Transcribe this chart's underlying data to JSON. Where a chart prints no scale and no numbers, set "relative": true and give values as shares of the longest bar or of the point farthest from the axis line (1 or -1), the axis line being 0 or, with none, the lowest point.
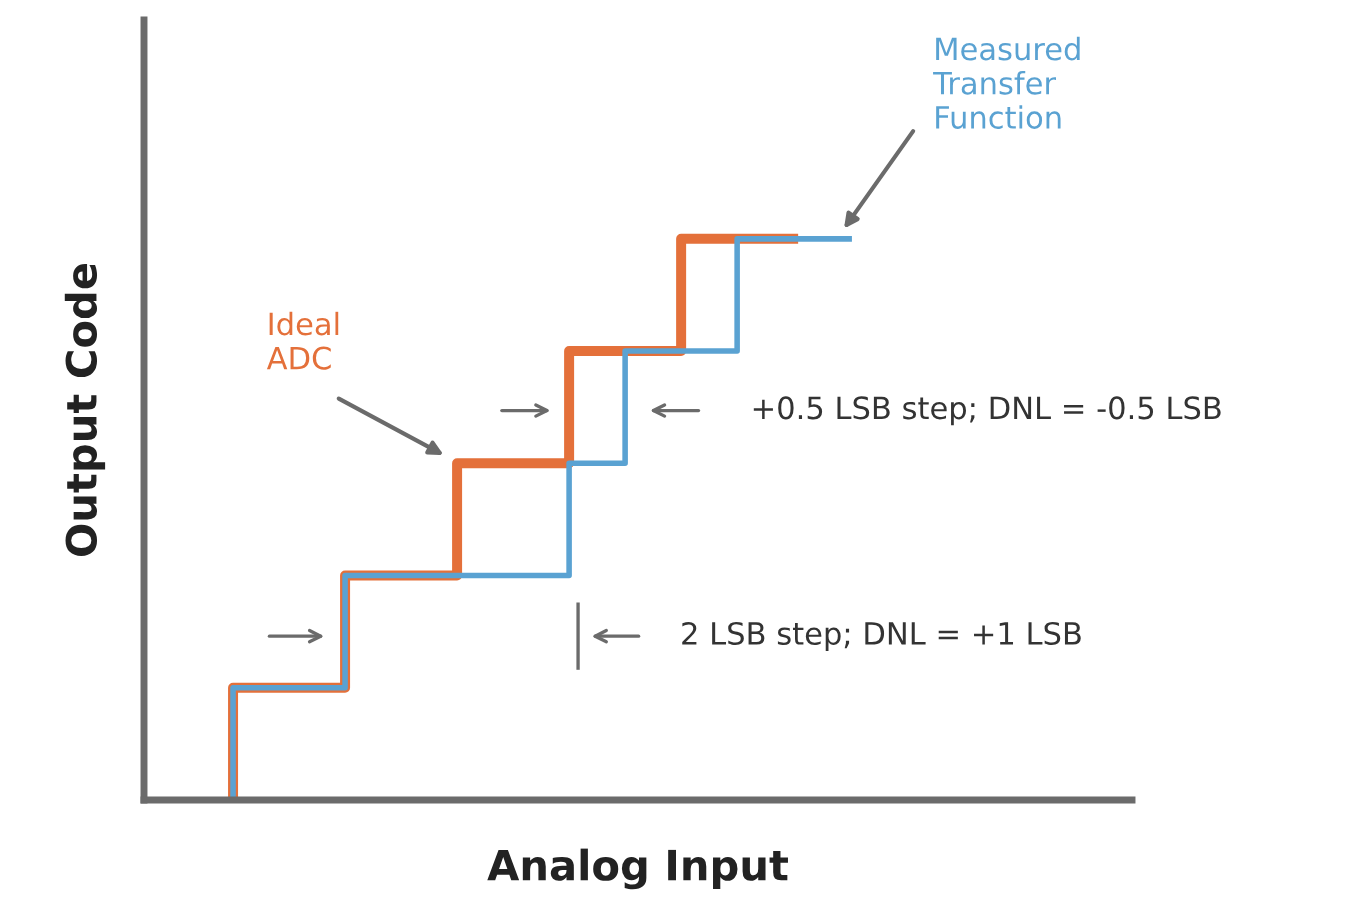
{
  "chart_data": {
    "type": "step",
    "relative": true,
    "xlabel": "Analog Input",
    "ylabel": "Output Code",
    "categories": [
      null,
      null,
      null,
      null,
      null,
      null,
      null,
      null,
      null,
      null,
      null,
      null
    ],
    "series": [
      {
        "name": "Ideal ADC",
        "color": "#e4703a",
        "values": [
          0,
          0.2,
          0.2,
          0.4,
          0.4,
          0.6,
          0.6,
          0.8,
          0.8,
          1,
          1,
          null
        ]
      },
      {
        "name": "Measured Transfer Function",
        "color": "#5aa2d2",
        "values": [
          0,
          0.2,
          0.2,
          0.4,
          0.4,
          0.4,
          0.4,
          0.6,
          0.8,
          0.8,
          1,
          1
        ]
      }
    ],
    "annotations": [
      "+0.5 LSB step; DNL = -0.5 LSB",
      "2 LSB step; DNL = +1 LSB"
    ],
    "grid": false
  }
}
